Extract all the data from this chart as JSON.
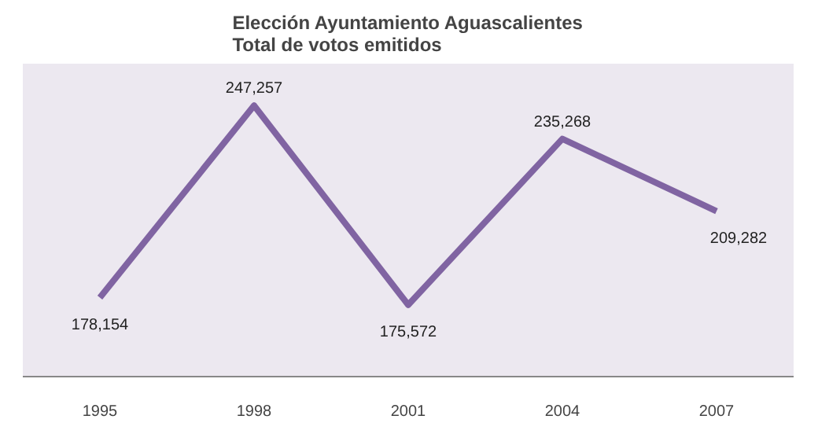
{
  "chart_data": {
    "type": "line",
    "title": "Elección Ayuntamiento Aguascalientes\nTotal de votos emitidos",
    "categories": [
      "1995",
      "1998",
      "2001",
      "2004",
      "2007"
    ],
    "series": [
      {
        "color": "#8064a2",
        "values": [
          178154,
          247257,
          175572,
          235268,
          209282
        ],
        "value_labels": [
          "178,154",
          "247,257",
          "175,572",
          "235,268",
          "209,282"
        ]
      }
    ],
    "tick_labels": "x",
    "grid": false,
    "marker": "none",
    "line_style": "solid"
  }
}
